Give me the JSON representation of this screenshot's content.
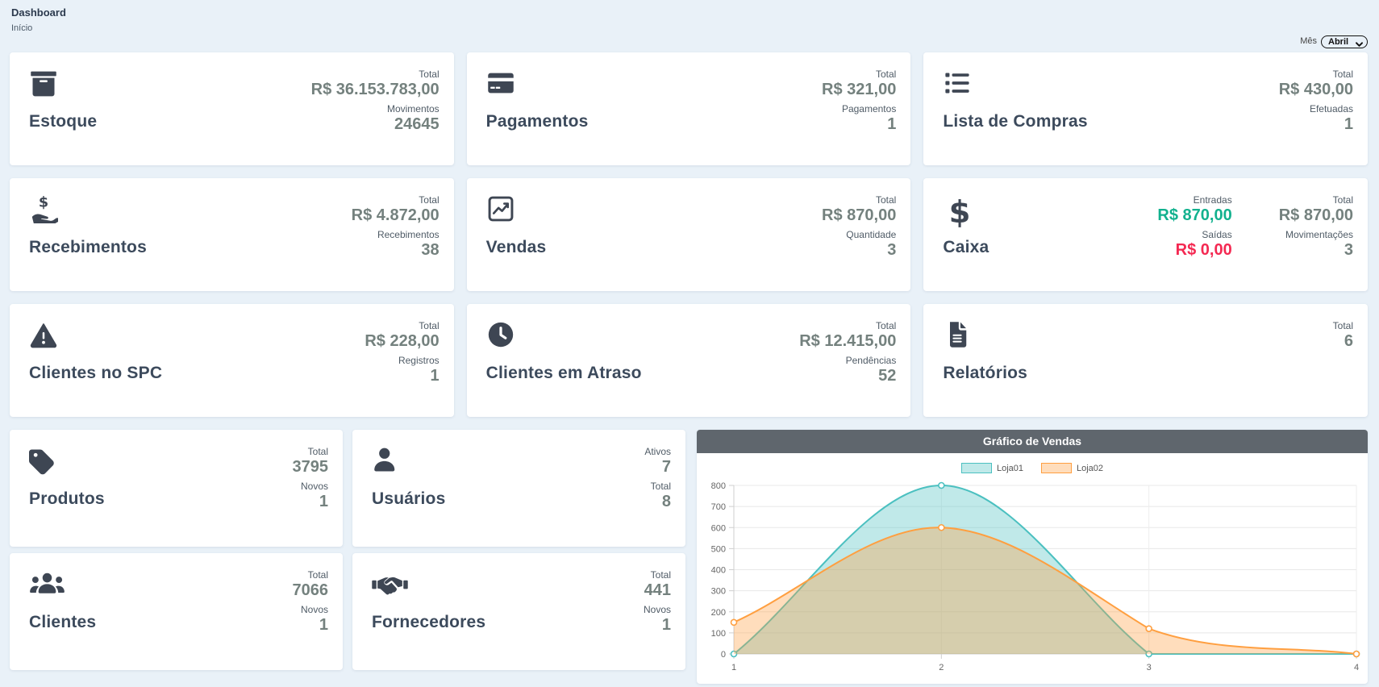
{
  "page": {
    "title": "Dashboard",
    "breadcrumb": "Início"
  },
  "filter": {
    "label": "Mês",
    "selected": "Abril"
  },
  "theme": {
    "background": "#e9f1f8",
    "icon_color": "#3e4653",
    "value_color": "#74817e",
    "green": "#12b18e",
    "red": "#f42952",
    "chart_header_bg": "#5f666d"
  },
  "cards": [
    {
      "title": "Estoque",
      "icon": "box-archive-icon",
      "stats": [
        {
          "label": "Total",
          "value": "R$ 36.153.783,00"
        },
        {
          "label": "Movimentos",
          "value": "24645"
        }
      ]
    },
    {
      "title": "Pagamentos",
      "icon": "credit-card-icon",
      "stats": [
        {
          "label": "Total",
          "value": "R$ 321,00"
        },
        {
          "label": "Pagamentos",
          "value": "1"
        }
      ]
    },
    {
      "title": "Lista de Compras",
      "icon": "list-icon",
      "stats": [
        {
          "label": "Total",
          "value": "R$ 430,00"
        },
        {
          "label": "Efetuadas",
          "value": "1"
        }
      ]
    },
    {
      "title": "Recebimentos",
      "icon": "hand-holding-dollar-icon",
      "stats": [
        {
          "label": "Total",
          "value": "R$ 4.872,00"
        },
        {
          "label": "Recebimentos",
          "value": "38"
        }
      ]
    },
    {
      "title": "Vendas",
      "icon": "chart-line-icon",
      "stats": [
        {
          "label": "Total",
          "value": "R$ 870,00"
        },
        {
          "label": "Quantidade",
          "value": "3"
        }
      ]
    },
    {
      "title": "Caixa",
      "icon": "dollar-sign-icon",
      "stat_columns": [
        [
          {
            "label": "Entradas",
            "value": "R$ 870,00",
            "tone": "green"
          },
          {
            "label": "Saídas",
            "value": "R$ 0,00",
            "tone": "red"
          }
        ],
        [
          {
            "label": "Total",
            "value": "R$ 870,00"
          },
          {
            "label": "Movimentações",
            "value": "3"
          }
        ]
      ]
    },
    {
      "title": "Clientes no SPC",
      "icon": "triangle-exclamation-icon",
      "stats": [
        {
          "label": "Total",
          "value": "R$ 228,00"
        },
        {
          "label": "Registros",
          "value": "1"
        }
      ]
    },
    {
      "title": "Clientes em Atraso",
      "icon": "clock-icon",
      "stats": [
        {
          "label": "Total",
          "value": "R$ 12.415,00"
        },
        {
          "label": "Pendências",
          "value": "52"
        }
      ]
    },
    {
      "title": "Relatórios",
      "icon": "file-lines-icon",
      "stats": [
        {
          "label": "Total",
          "value": "6"
        }
      ]
    }
  ],
  "mini_cards": [
    {
      "title": "Produtos",
      "icon": "tag-icon",
      "stats": [
        {
          "label": "Total",
          "value": "3795"
        },
        {
          "label": "Novos",
          "value": "1"
        }
      ]
    },
    {
      "title": "Usuários",
      "icon": "user-icon",
      "stats": [
        {
          "label": "Ativos",
          "value": "7"
        },
        {
          "label": "Total",
          "value": "8"
        }
      ]
    },
    {
      "title": "Clientes",
      "icon": "users-icon",
      "stats": [
        {
          "label": "Total",
          "value": "7066"
        },
        {
          "label": "Novos",
          "value": "1"
        }
      ]
    },
    {
      "title": "Fornecedores",
      "icon": "handshake-icon",
      "stats": [
        {
          "label": "Total",
          "value": "441"
        },
        {
          "label": "Novos",
          "value": "1"
        }
      ]
    }
  ],
  "chart_data": {
    "type": "area",
    "title": "Gráfico de Vendas",
    "x": [
      1,
      2,
      3,
      4
    ],
    "series": [
      {
        "name": "Loja01",
        "values": [
          0,
          800,
          0,
          0
        ],
        "color": "#4bc0c0",
        "fill": "rgba(75,192,192,0.35)"
      },
      {
        "name": "Loja02",
        "values": [
          150,
          600,
          120,
          0
        ],
        "color": "#ff9f40",
        "fill": "rgba(255,159,64,0.35)"
      }
    ],
    "ylim": [
      0,
      800
    ],
    "ytick_step": 100,
    "grid": true,
    "legend_position": "top"
  }
}
